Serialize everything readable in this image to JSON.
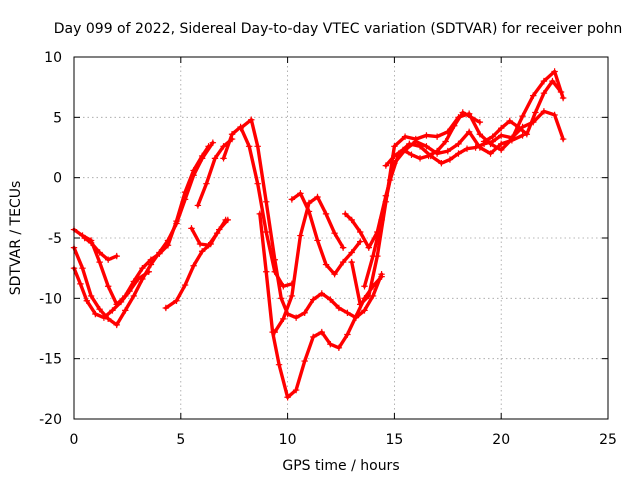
{
  "chart_data": {
    "type": "scatter",
    "title": "Day 099 of 2022, Sidereal Day-to-day VTEC variation (SDTVAR) for receiver pohn",
    "xlabel": "GPS time / hours",
    "ylabel": "SDTVAR / TECUs",
    "xlim": [
      0,
      25
    ],
    "ylim": [
      -20,
      10
    ],
    "xticks": [
      "0",
      "5",
      "10",
      "15",
      "20",
      "25"
    ],
    "yticks": [
      "-20",
      "-15",
      "-10",
      "-5",
      "0",
      "5",
      "10"
    ],
    "grid": true,
    "marker": "+",
    "colors": {
      "series": "#ff0000",
      "grid": "#a0a0a0",
      "axes": "#000000"
    },
    "series": [
      {
        "x": [
          0.0,
          0.4,
          0.8,
          1.2,
          1.6,
          2.0,
          2.4,
          2.8,
          3.2,
          3.6,
          4.0,
          4.4,
          4.8,
          5.2,
          5.6,
          6.0,
          6.3
        ],
        "y": [
          -4.3,
          -4.8,
          -5.2,
          -7.0,
          -9.0,
          -10.5,
          -9.8,
          -8.6,
          -7.5,
          -6.8,
          -6.3,
          -5.6,
          -3.6,
          -1.2,
          0.6,
          1.8,
          2.6
        ]
      },
      {
        "x": [
          0.0,
          0.4,
          0.8,
          1.2,
          1.6,
          2.0,
          2.4,
          2.8,
          3.2,
          3.6,
          4.0,
          4.4,
          4.8,
          5.2,
          5.6,
          6.0,
          6.5
        ],
        "y": [
          -5.8,
          -7.5,
          -9.8,
          -10.9,
          -11.7,
          -12.2,
          -11.0,
          -9.8,
          -8.4,
          -7.2,
          -6.2,
          -5.2,
          -3.8,
          -1.8,
          0.2,
          1.6,
          2.9
        ]
      },
      {
        "x": [
          0.0,
          0.3,
          0.6,
          1.0,
          1.4,
          1.8,
          2.2,
          2.6,
          3.0,
          3.5
        ],
        "y": [
          -7.5,
          -8.8,
          -10.2,
          -11.3,
          -11.6,
          -11.0,
          -10.3,
          -9.4,
          -8.4,
          -7.8
        ]
      },
      {
        "x": [
          0.5,
          0.8,
          1.2,
          1.6,
          2.0
        ],
        "y": [
          -5.0,
          -5.4,
          -6.2,
          -6.8,
          -6.5
        ]
      },
      {
        "x": [
          4.3,
          4.8,
          5.2,
          5.6,
          6.0,
          6.4,
          6.8,
          7.2
        ],
        "y": [
          -10.8,
          -10.2,
          -8.9,
          -7.3,
          -6.1,
          -5.5,
          -4.3,
          -3.5
        ]
      },
      {
        "x": [
          5.5,
          5.9,
          6.3,
          6.7,
          7.1
        ],
        "y": [
          -4.2,
          -5.5,
          -5.6,
          -4.6,
          -3.5
        ]
      },
      {
        "x": [
          5.8,
          6.2,
          6.6,
          7.0,
          7.4
        ],
        "y": [
          -2.3,
          -0.5,
          1.6,
          2.6,
          3.2
        ]
      },
      {
        "x": [
          7.0,
          7.4,
          7.8,
          8.2,
          8.6,
          9.0,
          9.4,
          9.8,
          10.2
        ],
        "y": [
          1.6,
          3.6,
          4.2,
          2.6,
          -0.5,
          -4.5,
          -7.8,
          -9.0,
          -8.8
        ]
      },
      {
        "x": [
          7.8,
          8.3,
          8.6,
          9.0,
          9.4,
          9.7,
          10.0,
          10.4,
          10.8,
          11.2,
          11.6,
          12.0,
          12.4,
          12.8,
          13.2,
          13.6,
          14.0,
          14.4
        ],
        "y": [
          4.1,
          4.8,
          2.6,
          -2.0,
          -6.8,
          -10.0,
          -11.3,
          -11.6,
          -11.2,
          -10.1,
          -9.6,
          -10.1,
          -10.8,
          -11.2,
          -11.6,
          -11.0,
          -9.8,
          -8.0
        ]
      },
      {
        "x": [
          8.7,
          9.0,
          9.3,
          9.6,
          10.0,
          10.4,
          10.8,
          11.2,
          11.6,
          12.0,
          12.4,
          12.8,
          13.2,
          13.6,
          14.0,
          14.4
        ],
        "y": [
          -3.0,
          -7.8,
          -12.8,
          -15.5,
          -18.2,
          -17.6,
          -15.2,
          -13.2,
          -12.8,
          -13.8,
          -14.1,
          -13.0,
          -11.5,
          -10.0,
          -9.0,
          -8.2
        ]
      },
      {
        "x": [
          9.4,
          9.8,
          10.2,
          10.6,
          11.0,
          11.4,
          11.8,
          12.2,
          12.6
        ],
        "y": [
          -12.8,
          -11.7,
          -9.8,
          -4.8,
          -2.1,
          -1.6,
          -3.0,
          -4.6,
          -5.8
        ]
      },
      {
        "x": [
          10.2,
          10.6,
          11.0,
          11.4,
          11.8,
          12.2,
          12.6,
          13.0,
          13.4
        ],
        "y": [
          -1.8,
          -1.3,
          -2.8,
          -5.2,
          -7.2,
          -8.0,
          -7.0,
          -6.2,
          -5.3
        ]
      },
      {
        "x": [
          12.7,
          13.0,
          13.4,
          13.8,
          14.2,
          14.6,
          15.0,
          15.5,
          16.0,
          16.5,
          17.0,
          17.5,
          18.0,
          18.5,
          19.0,
          19.5,
          20.0,
          20.5,
          21.0
        ],
        "y": [
          -3.0,
          -3.5,
          -4.5,
          -5.8,
          -4.5,
          -1.5,
          1.2,
          2.3,
          3.0,
          2.6,
          2.0,
          2.2,
          2.8,
          3.8,
          2.5,
          2.0,
          2.8,
          3.1,
          3.5
        ]
      },
      {
        "x": [
          13.0,
          13.4,
          13.8,
          14.2,
          14.6,
          15.0,
          15.5,
          16.0,
          16.5,
          17.0,
          17.5,
          18.0,
          18.5,
          19.0,
          19.5,
          20.0,
          20.5,
          21.0,
          21.5,
          22.0,
          22.5,
          22.9
        ],
        "y": [
          -7.0,
          -10.5,
          -9.8,
          -6.5,
          -2.0,
          2.6,
          3.4,
          3.2,
          3.5,
          3.4,
          3.8,
          5.0,
          5.3,
          3.6,
          2.8,
          2.3,
          3.2,
          5.1,
          6.8,
          8.0,
          8.8,
          6.6
        ]
      },
      {
        "x": [
          13.6,
          14.0,
          14.4,
          14.8,
          15.2,
          15.7,
          16.2,
          16.7,
          17.2,
          17.6,
          18.0,
          18.4,
          18.8,
          19.2,
          19.6,
          20.0,
          20.5,
          21.0,
          21.5,
          22.0,
          22.5,
          22.9
        ],
        "y": [
          -9.0,
          -6.5,
          -3.5,
          -0.2,
          2.0,
          2.8,
          2.6,
          1.8,
          1.2,
          1.5,
          2.0,
          2.4,
          2.5,
          2.8,
          3.0,
          3.5,
          3.3,
          4.2,
          4.6,
          5.5,
          5.2,
          3.2
        ]
      },
      {
        "x": [
          14.6,
          15.0,
          15.4,
          15.8,
          16.2,
          16.6,
          17.0,
          17.4,
          17.8,
          18.2,
          18.6,
          19.0
        ],
        "y": [
          1.0,
          1.8,
          2.3,
          1.9,
          1.6,
          1.8,
          2.2,
          3.0,
          4.3,
          5.4,
          5.0,
          4.6
        ]
      },
      {
        "x": [
          19.2,
          19.6,
          20.0,
          20.4,
          20.8,
          21.2,
          21.6,
          22.0,
          22.4,
          22.8
        ],
        "y": [
          3.0,
          3.4,
          4.1,
          4.7,
          4.2,
          3.6,
          5.4,
          7.0,
          8.0,
          7.1
        ]
      }
    ]
  }
}
